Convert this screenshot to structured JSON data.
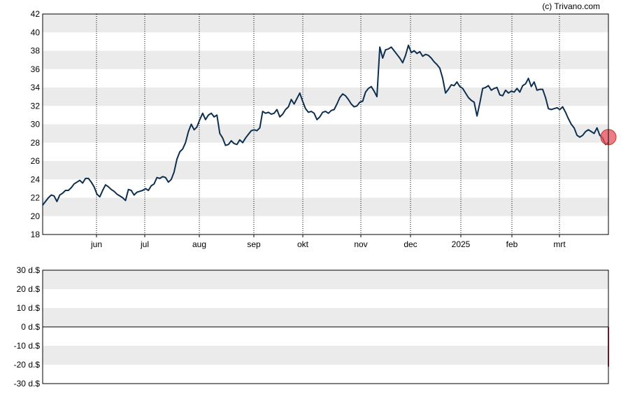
{
  "credit": "(c) Trivano.com",
  "colors": {
    "band": "#ebebeb",
    "line": "#0d2f4f",
    "marker": "#e8505b",
    "vol": "#d6334a",
    "grid": "#000000"
  },
  "chart_data": [
    {
      "type": "line",
      "y_tick_labels": [
        "18",
        "20",
        "22",
        "24",
        "26",
        "28",
        "30",
        "32",
        "34",
        "36",
        "38",
        "40",
        "42"
      ],
      "ylim": [
        18,
        42
      ],
      "x_tick_labels": [
        "jun",
        "jul",
        "aug",
        "sep",
        "okt",
        "nov",
        "dec",
        "2025",
        "feb",
        "mrt"
      ],
      "grid": "vertical dotted lines at month ticks, alternating horizontal bands",
      "series": [
        {
          "values": [
            21.2,
            21.6,
            22.0,
            22.3,
            22.2,
            21.6,
            22.3,
            22.5,
            22.8,
            22.8,
            23.1,
            23.5,
            23.7,
            23.9,
            23.6,
            24.1,
            24.1,
            23.7,
            23.2,
            22.4,
            22.1,
            22.8,
            23.4,
            23.2,
            22.9,
            22.7,
            22.4,
            22.2,
            22.0,
            21.7,
            22.9,
            22.8,
            22.3,
            22.6,
            22.7,
            22.8,
            23.0,
            22.8,
            23.3,
            23.5,
            24.2,
            24.1,
            24.3,
            24.2,
            23.7,
            24.0,
            24.8,
            26.2,
            27.0,
            27.3,
            28.0,
            29.2,
            30.0,
            29.4,
            29.7,
            30.5,
            31.2,
            30.5,
            31.0,
            31.2,
            30.8,
            31.0,
            29.0,
            28.5,
            27.7,
            27.8,
            28.2,
            27.9,
            27.8,
            28.3,
            28.0,
            28.5,
            28.9,
            29.3,
            29.4,
            29.3,
            29.6,
            31.4,
            31.2,
            31.3,
            31.1,
            31.2,
            31.6,
            30.8,
            31.1,
            31.6,
            31.9,
            32.7,
            32.2,
            32.8,
            33.4,
            32.5,
            31.7,
            31.3,
            31.4,
            31.2,
            30.5,
            30.8,
            31.3,
            31.4,
            31.2,
            31.5,
            31.6,
            32.2,
            32.9,
            33.3,
            33.1,
            32.7,
            32.2,
            31.9,
            32.0,
            32.4,
            32.5,
            33.5,
            33.9,
            34.1,
            33.6,
            33.0,
            38.4,
            37.2,
            38.1,
            38.2,
            38.4,
            38.0,
            37.6,
            37.2,
            36.7,
            37.5,
            38.6,
            37.8,
            38.0,
            37.7,
            37.9,
            37.4,
            37.6,
            37.5,
            37.2,
            36.8,
            36.5,
            36.1,
            35.0,
            33.4,
            33.8,
            34.3,
            34.2,
            34.6,
            34.1,
            33.9,
            33.4,
            32.9,
            32.6,
            32.4,
            30.9,
            32.3,
            33.9,
            34.0,
            34.2,
            33.7,
            33.9,
            34.0,
            33.2,
            33.1,
            33.7,
            33.4,
            33.6,
            33.5,
            33.9,
            33.5,
            34.2,
            34.4,
            35.0,
            34.1,
            34.6,
            33.7,
            33.8,
            33.8,
            32.9,
            31.7,
            31.6,
            31.7,
            31.8,
            31.6,
            31.9,
            31.3,
            30.6,
            30.0,
            29.6,
            28.8,
            28.6,
            28.8,
            29.2,
            29.4,
            29.2,
            29.0,
            29.6,
            28.8,
            28.5,
            27.8,
            28.0
          ]
        }
      ],
      "marker": {
        "x_index": 198,
        "y": 28.6
      }
    },
    {
      "type": "bar",
      "y_tick_labels": [
        "30 d.$",
        "20 d.$",
        "10 d.$",
        "0 d.$",
        "-10 d.$",
        "-20 d.$",
        "-30 d.$"
      ],
      "ylim": [
        -30,
        30
      ],
      "bars": [
        {
          "x_index": 198,
          "value": -21
        }
      ]
    }
  ]
}
